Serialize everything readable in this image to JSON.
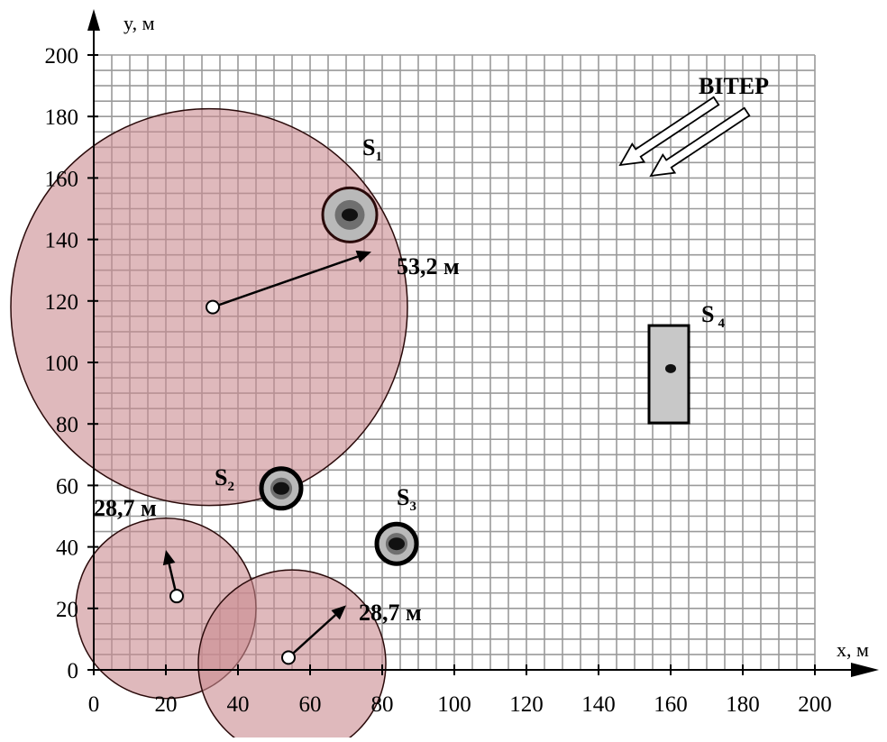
{
  "axes": {
    "x_title": "x, м",
    "y_title": "y, м",
    "x_ticks": [
      "0",
      "20",
      "40",
      "60",
      "80",
      "100",
      "120",
      "140",
      "160",
      "180",
      "200"
    ],
    "y_ticks": [
      "0",
      "20",
      "40",
      "60",
      "80",
      "100",
      "120",
      "140",
      "160",
      "180",
      "200"
    ]
  },
  "wind": {
    "label": "ВІТЕР"
  },
  "sources": [
    {
      "id": "S1",
      "main": "S",
      "sub": "1",
      "x": 71,
      "y": 148,
      "shape": "circle"
    },
    {
      "id": "S2",
      "main": "S",
      "sub": "2",
      "x": 52,
      "y": 59,
      "shape": "circle"
    },
    {
      "id": "S3",
      "main": "S",
      "sub": "3",
      "x": 84,
      "y": 41,
      "shape": "circle"
    },
    {
      "id": "S4",
      "main": "S",
      "sub": "4",
      "x": 160,
      "y": 98,
      "shape": "rectangle",
      "x_range": [
        154,
        165
      ],
      "y_range": [
        85,
        112
      ]
    }
  ],
  "zones": [
    {
      "center_x": 33,
      "center_y": 118,
      "radius_label": "53,2 м"
    },
    {
      "center_x": 23,
      "center_y": 24,
      "radius_label": "28,7 м"
    },
    {
      "center_x": 54,
      "center_y": 4,
      "radius_label": "28,7 м"
    }
  ],
  "colors": {
    "zone_fill": "#c98a8f",
    "zone_stroke": "#2a0a0a",
    "grid": "#9a9a9a",
    "source_fill": "#b9b9b9"
  }
}
